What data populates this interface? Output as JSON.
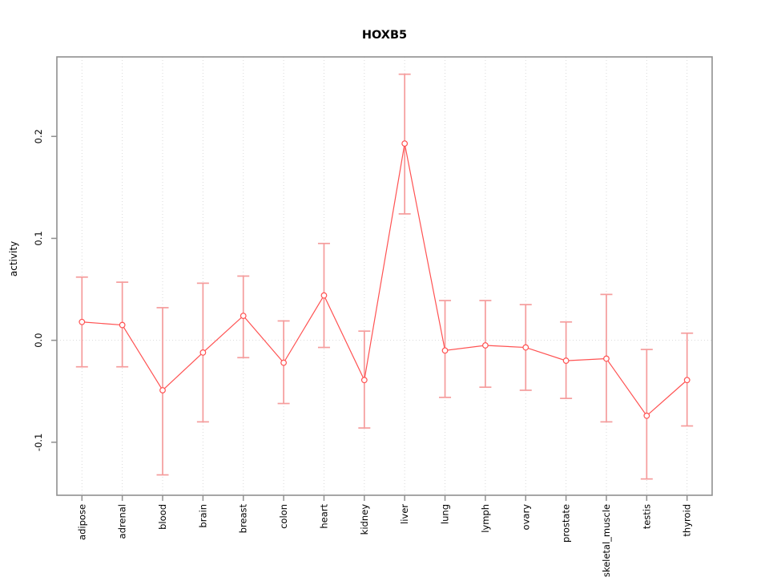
{
  "chart_data": {
    "type": "scatter",
    "title": "HOXB5",
    "xlabel": "",
    "ylabel": "activity",
    "ylim": [
      -0.152,
      0.278
    ],
    "yticks": [
      -0.1,
      0.0,
      0.1,
      0.2
    ],
    "ytick_labels": [
      "-0.1",
      "0.0",
      "0.1",
      "0.2"
    ],
    "grid": {
      "vertical_dotted_per_category": true,
      "horizontal_dotted_at_zero": true
    },
    "legend": null,
    "categories": [
      "adipose",
      "adrenal",
      "blood",
      "brain",
      "breast",
      "colon",
      "heart",
      "kidney",
      "liver",
      "lung",
      "lymph",
      "ovary",
      "prostate",
      "skeletal_muscle",
      "testis",
      "thyroid"
    ],
    "series": [
      {
        "name": "activity",
        "means": [
          0.018,
          0.015,
          -0.049,
          -0.012,
          0.024,
          -0.022,
          0.044,
          -0.039,
          0.193,
          -0.01,
          -0.005,
          -0.007,
          -0.02,
          -0.018,
          -0.074,
          -0.039
        ],
        "upper": [
          0.062,
          0.057,
          0.032,
          0.056,
          0.063,
          0.019,
          0.095,
          0.009,
          0.261,
          0.039,
          0.039,
          0.035,
          0.018,
          0.045,
          -0.009,
          0.007
        ],
        "lower": [
          -0.026,
          -0.026,
          -0.132,
          -0.08,
          -0.017,
          -0.062,
          -0.007,
          -0.086,
          0.124,
          -0.056,
          -0.046,
          -0.049,
          -0.057,
          -0.08,
          -0.136,
          -0.084
        ]
      }
    ],
    "colors": {
      "point_line": "#ff5252",
      "error_bar": "#f59c9c",
      "grid": "#d9d9d9",
      "zero_line": "#d9d9d9",
      "axis": "#8f8f8f",
      "text": "#000000",
      "background": "#ffffff"
    }
  }
}
